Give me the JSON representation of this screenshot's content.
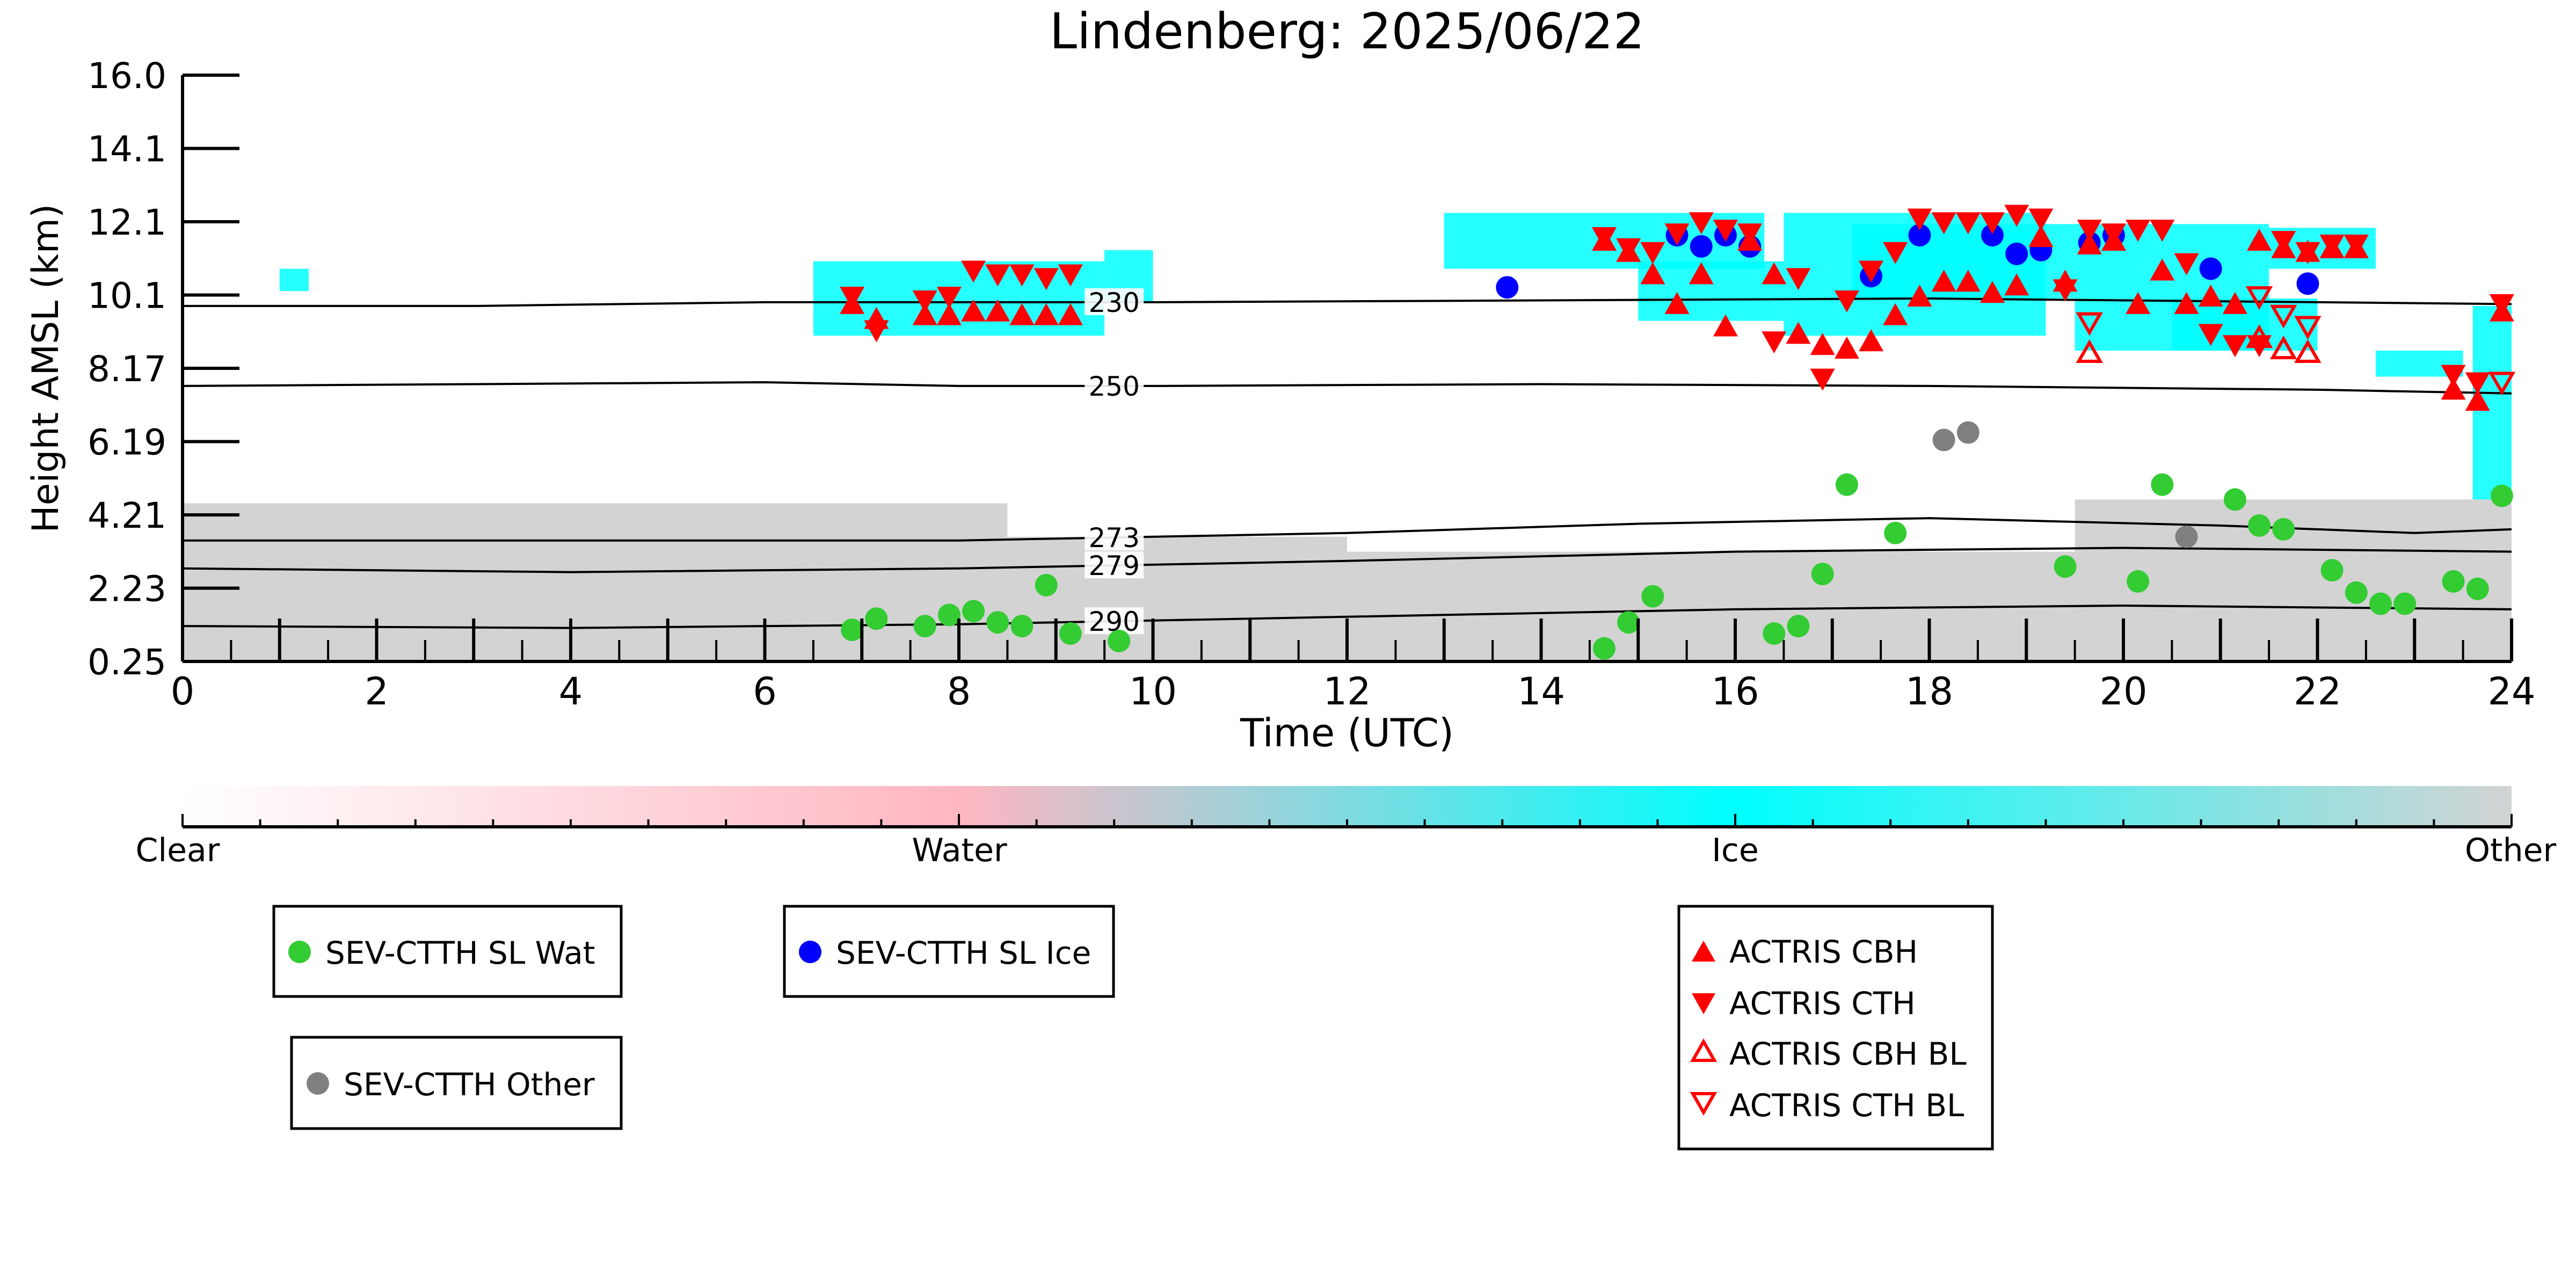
{
  "colors": {
    "cloud_ice": "#00ffff",
    "cloud_other": "#d3d3d3",
    "sev_water": "#33cc33",
    "sev_ice": "#0000ff",
    "sev_other": "#808080",
    "actris": "#ff0000",
    "colorbar_stops": [
      "#ffffff",
      "#ffb6c1",
      "#00ffff",
      "#d3d3d3"
    ]
  },
  "chart_data": {
    "type": "scatter",
    "title": "Lindenberg: 2025/06/22",
    "xlabel": "Time (UTC)",
    "ylabel": "Height AMSL (km)",
    "xlim": [
      0,
      24
    ],
    "ylim": [
      0.25,
      16.0
    ],
    "x_ticks": [
      "0",
      "2",
      "4",
      "6",
      "8",
      "10",
      "12",
      "14",
      "16",
      "18",
      "20",
      "22",
      "24"
    ],
    "y_ticks": [
      "0.25",
      "2.23",
      "4.21",
      "6.19",
      "8.17",
      "10.1",
      "12.1",
      "14.1",
      "16.0"
    ],
    "grid": false,
    "colorbar": {
      "labels": [
        "Clear",
        "Water",
        "Ice",
        "Other"
      ]
    },
    "isotherms": [
      {
        "label": "230",
        "label_x": 9.6,
        "points": [
          [
            0,
            9.8
          ],
          [
            3,
            9.8
          ],
          [
            6,
            9.9
          ],
          [
            8,
            9.9
          ],
          [
            10,
            9.9
          ],
          [
            14,
            9.95
          ],
          [
            18,
            10.0
          ],
          [
            22,
            9.9
          ],
          [
            24,
            9.85
          ]
        ]
      },
      {
        "label": "250",
        "label_x": 9.6,
        "points": [
          [
            0,
            7.65
          ],
          [
            3,
            7.7
          ],
          [
            6,
            7.75
          ],
          [
            8,
            7.65
          ],
          [
            10,
            7.65
          ],
          [
            14,
            7.7
          ],
          [
            18,
            7.65
          ],
          [
            22,
            7.55
          ],
          [
            24,
            7.45
          ]
        ]
      },
      {
        "label": "273",
        "label_x": 9.6,
        "points": [
          [
            0,
            3.5
          ],
          [
            4,
            3.5
          ],
          [
            8,
            3.5
          ],
          [
            12,
            3.7
          ],
          [
            15,
            3.95
          ],
          [
            18,
            4.1
          ],
          [
            21,
            3.9
          ],
          [
            23,
            3.7
          ],
          [
            24,
            3.8
          ]
        ]
      },
      {
        "label": "279",
        "label_x": 9.6,
        "points": [
          [
            0,
            2.75
          ],
          [
            4,
            2.65
          ],
          [
            8,
            2.75
          ],
          [
            12,
            2.95
          ],
          [
            16,
            3.2
          ],
          [
            20,
            3.3
          ],
          [
            24,
            3.2
          ]
        ]
      },
      {
        "label": "290",
        "label_x": 9.6,
        "points": [
          [
            0,
            1.2
          ],
          [
            4,
            1.15
          ],
          [
            8,
            1.25
          ],
          [
            12,
            1.45
          ],
          [
            16,
            1.65
          ],
          [
            20,
            1.75
          ],
          [
            24,
            1.65
          ]
        ]
      }
    ],
    "cloud_regions": [
      {
        "class": "Ice",
        "x0": 6.5,
        "x1": 9.5,
        "y0": 9.0,
        "y1": 11.0
      },
      {
        "class": "Ice",
        "x0": 9.5,
        "x1": 10.0,
        "y0": 9.9,
        "y1": 11.3
      },
      {
        "class": "Ice",
        "x0": 1.0,
        "x1": 1.3,
        "y0": 10.2,
        "y1": 10.8
      },
      {
        "class": "Ice",
        "x0": 13.0,
        "x1": 16.3,
        "y0": 10.8,
        "y1": 12.3
      },
      {
        "class": "Ice",
        "x0": 15.0,
        "x1": 16.5,
        "y0": 9.4,
        "y1": 11.0
      },
      {
        "class": "Ice",
        "x0": 16.5,
        "x1": 19.2,
        "y0": 9.0,
        "y1": 12.3
      },
      {
        "class": "Ice",
        "x0": 17.2,
        "x1": 19.5,
        "y0": 10.0,
        "y1": 12.0
      },
      {
        "class": "Ice",
        "x0": 19.5,
        "x1": 21.5,
        "y0": 8.6,
        "y1": 12.0
      },
      {
        "class": "Ice",
        "x0": 21.5,
        "x1": 22.6,
        "y0": 10.8,
        "y1": 11.9
      },
      {
        "class": "Ice",
        "x0": 20.5,
        "x1": 22.0,
        "y0": 8.6,
        "y1": 10.0
      },
      {
        "class": "Ice",
        "x0": 22.6,
        "x1": 23.5,
        "y0": 7.9,
        "y1": 8.6
      },
      {
        "class": "Ice",
        "x0": 23.6,
        "x1": 24.0,
        "y0": 4.6,
        "y1": 9.8
      },
      {
        "class": "Other",
        "x0": 0,
        "x1": 24,
        "y0": 0.25,
        "y1": 3.2
      },
      {
        "class": "Other",
        "x0": 0,
        "x1": 8.5,
        "y0": 3.2,
        "y1": 4.5
      },
      {
        "class": "Other",
        "x0": 8.5,
        "x1": 12.0,
        "y0": 3.2,
        "y1": 3.6
      },
      {
        "class": "Other",
        "x0": 19.5,
        "x1": 24,
        "y0": 3.2,
        "y1": 4.6
      }
    ],
    "series": [
      {
        "name": "SEV-CTTH SL Wat",
        "marker": "circle",
        "color": "#33cc33",
        "points": [
          [
            6.9,
            1.1
          ],
          [
            7.15,
            1.4
          ],
          [
            7.65,
            1.2
          ],
          [
            7.9,
            1.5
          ],
          [
            8.15,
            1.6
          ],
          [
            8.4,
            1.3
          ],
          [
            8.65,
            1.2
          ],
          [
            8.9,
            2.3
          ],
          [
            9.15,
            1.0
          ],
          [
            9.65,
            0.8
          ],
          [
            14.65,
            0.6
          ],
          [
            14.9,
            1.3
          ],
          [
            15.15,
            2.0
          ],
          [
            16.4,
            1.0
          ],
          [
            16.65,
            1.2
          ],
          [
            16.9,
            2.6
          ],
          [
            17.15,
            5.0
          ],
          [
            17.65,
            3.7
          ],
          [
            19.4,
            2.8
          ],
          [
            20.15,
            2.4
          ],
          [
            20.4,
            5.0
          ],
          [
            21.15,
            4.6
          ],
          [
            21.4,
            3.9
          ],
          [
            21.65,
            3.8
          ],
          [
            22.15,
            2.7
          ],
          [
            22.4,
            2.1
          ],
          [
            22.65,
            1.8
          ],
          [
            22.9,
            1.8
          ],
          [
            23.4,
            2.4
          ],
          [
            23.65,
            2.2
          ],
          [
            23.9,
            4.7
          ]
        ]
      },
      {
        "name": "SEV-CTTH SL Ice",
        "marker": "circle",
        "color": "#0000ff",
        "points": [
          [
            13.65,
            10.3
          ],
          [
            15.4,
            11.7
          ],
          [
            15.65,
            11.4
          ],
          [
            15.9,
            11.7
          ],
          [
            16.15,
            11.4
          ],
          [
            17.4,
            10.6
          ],
          [
            17.9,
            11.7
          ],
          [
            18.65,
            11.7
          ],
          [
            18.9,
            11.2
          ],
          [
            19.15,
            11.3
          ],
          [
            19.65,
            11.5
          ],
          [
            19.9,
            11.7
          ],
          [
            20.9,
            10.8
          ],
          [
            21.9,
            10.4
          ]
        ]
      },
      {
        "name": "SEV-CTTH Other",
        "marker": "circle",
        "color": "#808080",
        "points": [
          [
            18.15,
            6.2
          ],
          [
            18.4,
            6.4
          ],
          [
            20.65,
            3.6
          ]
        ]
      },
      {
        "name": "ACTRIS CBH",
        "marker": "triangle-up",
        "color": "#ff0000",
        "points": [
          [
            6.9,
            9.8
          ],
          [
            7.15,
            9.4
          ],
          [
            7.65,
            9.5
          ],
          [
            7.9,
            9.5
          ],
          [
            8.15,
            9.6
          ],
          [
            8.4,
            9.6
          ],
          [
            8.65,
            9.5
          ],
          [
            8.9,
            9.5
          ],
          [
            9.15,
            9.5
          ],
          [
            14.65,
            11.5
          ],
          [
            14.9,
            11.2
          ],
          [
            15.15,
            10.6
          ],
          [
            15.4,
            9.8
          ],
          [
            15.65,
            10.6
          ],
          [
            15.9,
            9.2
          ],
          [
            16.15,
            11.5
          ],
          [
            16.4,
            10.6
          ],
          [
            16.65,
            9.0
          ],
          [
            16.9,
            8.7
          ],
          [
            17.15,
            8.6
          ],
          [
            17.4,
            8.8
          ],
          [
            17.65,
            9.5
          ],
          [
            17.9,
            10.0
          ],
          [
            18.15,
            10.4
          ],
          [
            18.4,
            10.4
          ],
          [
            18.65,
            10.1
          ],
          [
            18.9,
            10.3
          ],
          [
            19.15,
            11.6
          ],
          [
            19.4,
            10.4
          ],
          [
            19.65,
            11.4
          ],
          [
            19.9,
            11.5
          ],
          [
            20.15,
            9.8
          ],
          [
            20.4,
            10.7
          ],
          [
            20.65,
            9.8
          ],
          [
            20.9,
            10.0
          ],
          [
            21.15,
            9.8
          ],
          [
            21.4,
            11.5
          ],
          [
            21.65,
            11.3
          ],
          [
            21.9,
            11.2
          ],
          [
            22.15,
            11.3
          ],
          [
            22.4,
            11.3
          ],
          [
            23.4,
            7.5
          ],
          [
            23.65,
            7.2
          ],
          [
            23.9,
            9.6
          ]
        ]
      },
      {
        "name": "ACTRIS CTH",
        "marker": "triangle-down",
        "color": "#ff0000",
        "points": [
          [
            6.9,
            10.1
          ],
          [
            7.15,
            9.2
          ],
          [
            7.65,
            10.0
          ],
          [
            7.9,
            10.1
          ],
          [
            8.15,
            10.8
          ],
          [
            8.4,
            10.7
          ],
          [
            8.65,
            10.7
          ],
          [
            8.9,
            10.6
          ],
          [
            9.15,
            10.7
          ],
          [
            14.65,
            11.7
          ],
          [
            14.9,
            11.4
          ],
          [
            15.15,
            11.3
          ],
          [
            15.4,
            11.8
          ],
          [
            15.65,
            12.1
          ],
          [
            15.9,
            11.9
          ],
          [
            16.15,
            11.8
          ],
          [
            16.4,
            8.9
          ],
          [
            16.65,
            10.6
          ],
          [
            16.9,
            7.9
          ],
          [
            17.15,
            10.0
          ],
          [
            17.4,
            10.8
          ],
          [
            17.65,
            11.3
          ],
          [
            17.9,
            12.2
          ],
          [
            18.15,
            12.1
          ],
          [
            18.4,
            12.1
          ],
          [
            18.65,
            12.1
          ],
          [
            18.9,
            12.3
          ],
          [
            19.15,
            12.2
          ],
          [
            19.4,
            10.3
          ],
          [
            19.65,
            11.9
          ],
          [
            19.9,
            11.8
          ],
          [
            20.15,
            11.9
          ],
          [
            20.4,
            11.9
          ],
          [
            20.65,
            11.0
          ],
          [
            20.9,
            9.1
          ],
          [
            21.15,
            8.8
          ],
          [
            21.4,
            8.8
          ],
          [
            21.65,
            11.6
          ],
          [
            21.9,
            11.3
          ],
          [
            22.15,
            11.5
          ],
          [
            22.4,
            11.5
          ],
          [
            23.4,
            8.0
          ],
          [
            23.65,
            7.8
          ],
          [
            23.9,
            9.9
          ]
        ]
      },
      {
        "name": "ACTRIS CBH BL",
        "marker": "triangle-up-open",
        "color": "#ff0000",
        "points": [
          [
            19.65,
            8.5
          ],
          [
            21.4,
            8.9
          ],
          [
            21.65,
            8.6
          ],
          [
            21.9,
            8.5
          ]
        ]
      },
      {
        "name": "ACTRIS CTH BL",
        "marker": "triangle-down-open",
        "color": "#ff0000",
        "points": [
          [
            19.65,
            9.4
          ],
          [
            21.4,
            10.1
          ],
          [
            21.65,
            9.6
          ],
          [
            21.9,
            9.3
          ],
          [
            23.9,
            7.8
          ]
        ]
      }
    ]
  }
}
